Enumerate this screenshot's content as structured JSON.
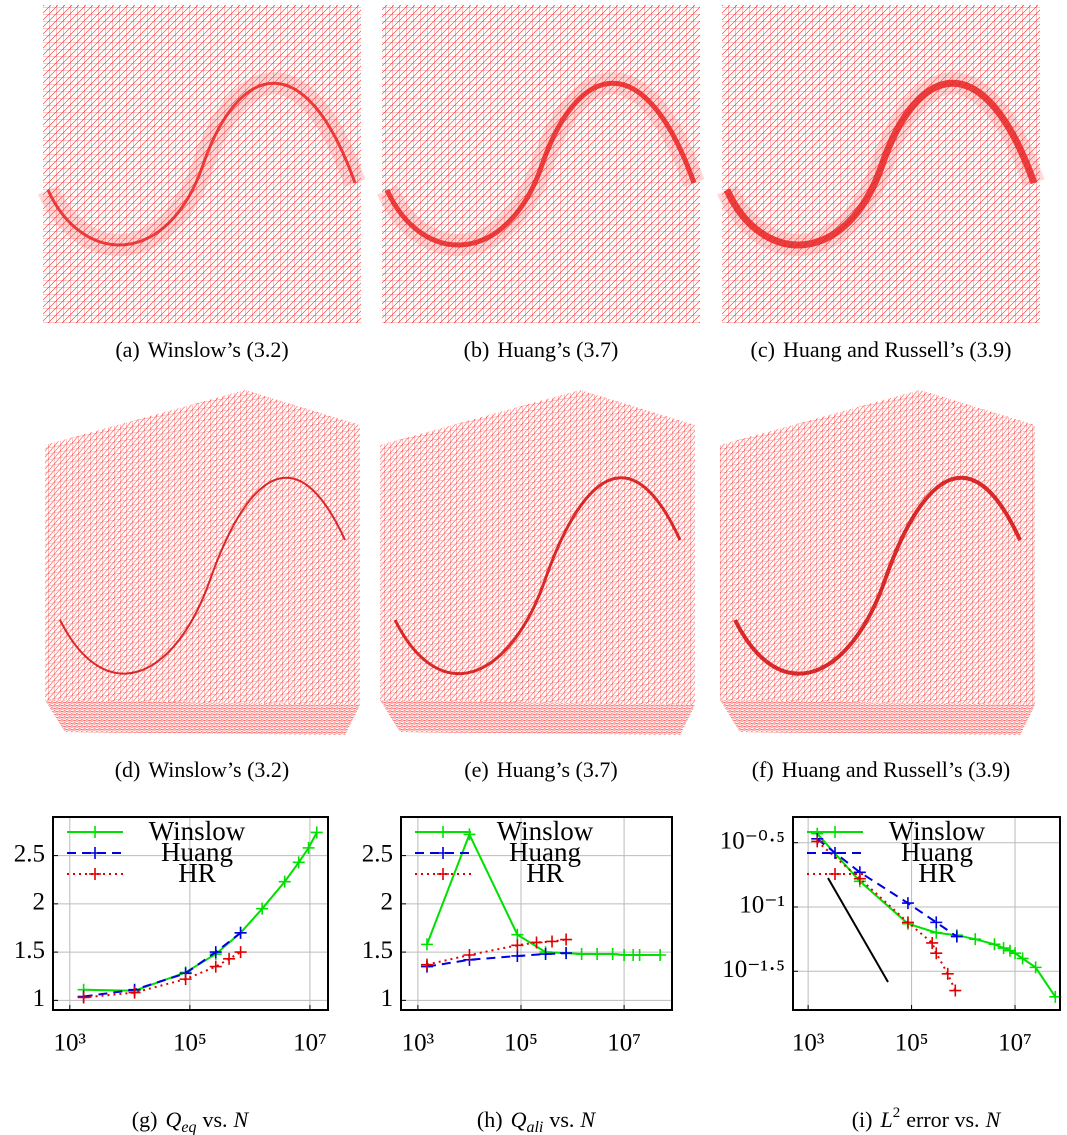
{
  "captions": [
    {
      "label": "(a)",
      "text": "Winslow’s (3.2)"
    },
    {
      "label": "(b)",
      "text": "Huang’s (3.7)"
    },
    {
      "label": "(c)",
      "text": "Huang and Russell’s (3.9)"
    },
    {
      "label": "(d)",
      "text": "Winslow’s (3.2)"
    },
    {
      "label": "(e)",
      "text": "Huang’s (3.7)"
    },
    {
      "label": "(f)",
      "text": "Huang and Russell’s (3.9)"
    }
  ],
  "chart_data": [
    {
      "type": "line",
      "log_x": true,
      "log_y": false,
      "grid": true,
      "legend": "top right",
      "caption": {
        "label": "(g)",
        "symbol": "Q",
        "subscript": "eq",
        "text": "vs.",
        "variable": "N"
      },
      "xlim": [
        525,
        20000000
      ],
      "xticks": [
        {
          "value": 1000,
          "label": "10³"
        },
        {
          "value": 100000,
          "label": "10⁵"
        },
        {
          "value": 10000000,
          "label": "10⁷"
        }
      ],
      "ylim": [
        0.9,
        2.9
      ],
      "yticks": [
        1,
        1.5,
        2,
        2.5
      ],
      "series": [
        {
          "name": "Winslow",
          "color": "#00e000",
          "dash": "solid",
          "x": [
            1700,
            12000,
            85000,
            270000,
            700000,
            1600000,
            3800000,
            6500000,
            9500000,
            13000000
          ],
          "values": [
            1.11,
            1.1,
            1.29,
            1.48,
            1.7,
            1.95,
            2.23,
            2.43,
            2.58,
            2.74
          ]
        },
        {
          "name": "Huang",
          "color": "#0000e0",
          "dash": "dashed",
          "x": [
            1700,
            12000,
            85000,
            270000,
            700000
          ],
          "values": [
            1.04,
            1.11,
            1.28,
            1.5,
            1.7
          ]
        },
        {
          "name": "HR",
          "color": "#e00000",
          "dash": "dotted",
          "x": [
            1700,
            12000,
            85000,
            270000,
            450000,
            700000
          ],
          "values": [
            1.03,
            1.08,
            1.22,
            1.35,
            1.43,
            1.5
          ]
        }
      ]
    },
    {
      "type": "line",
      "log_x": true,
      "log_y": false,
      "grid": true,
      "legend": "top right",
      "caption": {
        "label": "(h)",
        "symbol": "Q",
        "subscript": "ali",
        "text": "vs.",
        "variable": "N"
      },
      "xlim": [
        470,
        85000000
      ],
      "xticks": [
        {
          "value": 1000,
          "label": "10³"
        },
        {
          "value": 100000,
          "label": "10⁵"
        },
        {
          "value": 10000000,
          "label": "10⁷"
        }
      ],
      "ylim": [
        0.9,
        2.9
      ],
      "yticks": [
        1,
        1.5,
        2,
        2.5
      ],
      "series": [
        {
          "name": "Winslow",
          "color": "#00e000",
          "dash": "solid",
          "x": [
            1500,
            10000,
            85000,
            300000,
            750000,
            1500000,
            3000000,
            6000000,
            10000000,
            15000000,
            20000000,
            50000000
          ],
          "values": [
            1.58,
            2.72,
            1.68,
            1.5,
            1.49,
            1.48,
            1.48,
            1.48,
            1.47,
            1.47,
            1.47,
            1.47
          ]
        },
        {
          "name": "Huang",
          "color": "#0000e0",
          "dash": "dashed",
          "x": [
            1500,
            10000,
            85000,
            300000,
            750000
          ],
          "values": [
            1.35,
            1.42,
            1.46,
            1.48,
            1.49
          ]
        },
        {
          "name": "HR",
          "color": "#e00000",
          "dash": "dotted",
          "x": [
            1500,
            10000,
            85000,
            200000,
            400000,
            750000
          ],
          "values": [
            1.37,
            1.47,
            1.57,
            1.6,
            1.61,
            1.63
          ]
        }
      ]
    },
    {
      "type": "line",
      "log_x": true,
      "log_y": true,
      "grid": true,
      "legend": "top right",
      "caption": {
        "label": "(i)",
        "symbol": "L",
        "superscript": "2",
        "text": "error vs.",
        "variable": "N"
      },
      "xlim": [
        510,
        74000000
      ],
      "xticks": [
        {
          "value": 1000,
          "label": "10³"
        },
        {
          "value": 100000,
          "label": "10⁵"
        },
        {
          "value": 10000000,
          "label": "10⁷"
        }
      ],
      "ylim": [
        0.0158,
        0.5012
      ],
      "yticks": [
        {
          "value": 0.316228,
          "label": "10⁻⁰·⁵"
        },
        {
          "value": 0.1,
          "label": "10⁻¹"
        },
        {
          "value": 0.031623,
          "label": "10⁻¹·⁵"
        }
      ],
      "series": [
        {
          "name": "Winslow",
          "color": "#00e000",
          "dash": "solid",
          "x": [
            1500,
            10000,
            85000,
            300000,
            750000,
            1700000,
            4000000,
            6000000,
            8000000,
            10000000,
            14000000,
            25000000,
            60000000
          ],
          "values": [
            0.3715,
            0.1585,
            0.0741,
            0.0631,
            0.0603,
            0.0562,
            0.0513,
            0.0479,
            0.0457,
            0.0437,
            0.0398,
            0.0339,
            0.02
          ]
        },
        {
          "name": "Huang",
          "color": "#0000e0",
          "dash": "dashed",
          "x": [
            1500,
            10000,
            85000,
            300000,
            750000
          ],
          "values": [
            0.3388,
            0.1862,
            0.1072,
            0.0759,
            0.0589
          ]
        },
        {
          "name": "HR",
          "color": "#e00000",
          "dash": "dotted",
          "x": [
            1500,
            10000,
            85000,
            250000,
            300000,
            500000,
            700000
          ],
          "values": [
            0.3236,
            0.166,
            0.0759,
            0.0525,
            0.0437,
            0.0302,
            0.0224
          ]
        }
      ]
    }
  ]
}
